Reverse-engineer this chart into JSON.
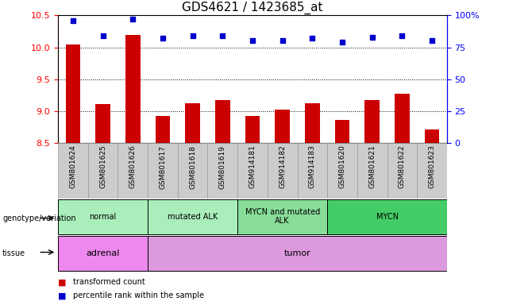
{
  "title": "GDS4621 / 1423685_at",
  "samples": [
    "GSM801624",
    "GSM801625",
    "GSM801626",
    "GSM801617",
    "GSM801618",
    "GSM801619",
    "GSM914181",
    "GSM914182",
    "GSM914183",
    "GSM801620",
    "GSM801621",
    "GSM801622",
    "GSM801623"
  ],
  "transformed_count": [
    10.04,
    9.11,
    10.19,
    8.93,
    9.12,
    9.18,
    8.93,
    9.03,
    9.12,
    8.87,
    9.18,
    9.28,
    8.72
  ],
  "percentile_rank": [
    96,
    84,
    97,
    82,
    84,
    84,
    80,
    80,
    82,
    79,
    83,
    84,
    80
  ],
  "ylim_left": [
    8.5,
    10.5
  ],
  "ylim_right": [
    0,
    100
  ],
  "yticks_left": [
    8.5,
    9.0,
    9.5,
    10.0,
    10.5
  ],
  "yticks_right": [
    0,
    25,
    50,
    75,
    100
  ],
  "bar_color": "#cc0000",
  "dot_color": "#0000cc",
  "bar_bottom": 8.5,
  "genotype_groups": [
    {
      "label": "normal",
      "start": 0,
      "end": 3,
      "color": "#aaeebb"
    },
    {
      "label": "mutated ALK",
      "start": 3,
      "end": 6,
      "color": "#aaeebb"
    },
    {
      "label": "MYCN and mutated\nALK",
      "start": 6,
      "end": 9,
      "color": "#88dd99"
    },
    {
      "label": "MYCN",
      "start": 9,
      "end": 13,
      "color": "#44cc66"
    }
  ],
  "tissue_groups": [
    {
      "label": "adrenal",
      "start": 0,
      "end": 3,
      "color": "#ee88ee"
    },
    {
      "label": "tumor",
      "start": 3,
      "end": 13,
      "color": "#dd99dd"
    }
  ],
  "xlabel_bg": "#cccccc",
  "xlabel_edgecolor": "#999999",
  "grid_color": "black",
  "grid_style": "dotted",
  "title_fontsize": 11,
  "tick_fontsize": 8,
  "label_fontsize": 8,
  "bar_width": 0.5
}
